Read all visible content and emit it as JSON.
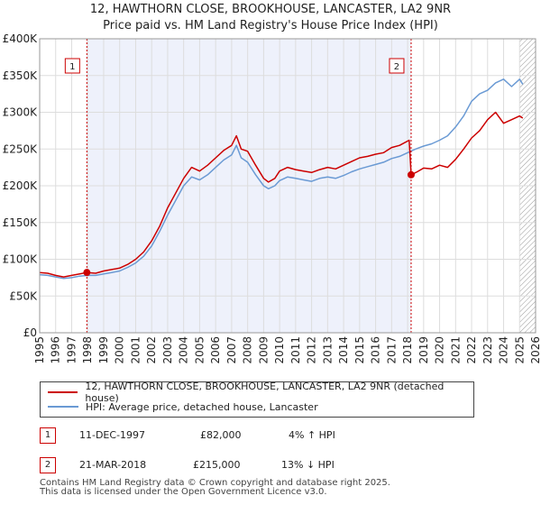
{
  "chart_data": {
    "type": "line",
    "title": "12, HAWTHORN CLOSE, BROOKHOUSE, LANCASTER, LA2 9NR",
    "subtitle": "Price paid vs. HM Land Registry's House Price Index (HPI)",
    "xlabel": "",
    "ylabel": "",
    "xlim": [
      1995,
      2026
    ],
    "ylim": [
      0,
      400000
    ],
    "x_ticks": [
      "1995",
      "1996",
      "1997",
      "1998",
      "1999",
      "2000",
      "2001",
      "2002",
      "2003",
      "2004",
      "2005",
      "2006",
      "2007",
      "2008",
      "2009",
      "2010",
      "2011",
      "2012",
      "2013",
      "2014",
      "2015",
      "2016",
      "2017",
      "2018",
      "2019",
      "2020",
      "2021",
      "2022",
      "2023",
      "2024",
      "2025",
      "2026"
    ],
    "y_ticks": [
      {
        "value": 0,
        "label": "£0"
      },
      {
        "value": 50000,
        "label": "£50K"
      },
      {
        "value": 100000,
        "label": "£100K"
      },
      {
        "value": 150000,
        "label": "£150K"
      },
      {
        "value": 200000,
        "label": "£200K"
      },
      {
        "value": 250000,
        "label": "£250K"
      },
      {
        "value": 300000,
        "label": "£300K"
      },
      {
        "value": 350000,
        "label": "£350K"
      },
      {
        "value": 400000,
        "label": "£400K"
      }
    ],
    "grid": true,
    "shaded_range": [
      1997.95,
      2018.22
    ],
    "hatched_from": 2025.0,
    "series": [
      {
        "name": "12, HAWTHORN CLOSE, BROOKHOUSE, LANCASTER, LA2 9NR (detached house)",
        "color": "#cc0000",
        "x": [
          1995,
          1995.5,
          1996,
          1996.5,
          1997,
          1997.5,
          1997.95,
          1998.5,
          1999,
          1999.5,
          2000,
          2000.5,
          2001,
          2001.5,
          2002,
          2002.5,
          2003,
          2003.5,
          2004,
          2004.5,
          2005,
          2005.5,
          2006,
          2006.5,
          2007,
          2007.3,
          2007.6,
          2008,
          2008.5,
          2009,
          2009.3,
          2009.7,
          2010,
          2010.5,
          2011,
          2011.5,
          2012,
          2012.5,
          2013,
          2013.5,
          2014,
          2014.5,
          2015,
          2015.5,
          2016,
          2016.5,
          2017,
          2017.5,
          2018.1,
          2018.22,
          2018.6,
          2019,
          2019.5,
          2020,
          2020.5,
          2021,
          2021.5,
          2022,
          2022.5,
          2023,
          2023.5,
          2024,
          2024.5,
          2025,
          2025.2
        ],
        "y": [
          82000,
          81000,
          78000,
          76000,
          78000,
          80000,
          82000,
          81000,
          84000,
          86000,
          88000,
          93000,
          100000,
          110000,
          125000,
          145000,
          170000,
          190000,
          210000,
          225000,
          220000,
          228000,
          238000,
          248000,
          255000,
          268000,
          250000,
          247000,
          228000,
          210000,
          205000,
          210000,
          220000,
          225000,
          222000,
          220000,
          218000,
          222000,
          225000,
          223000,
          228000,
          233000,
          238000,
          240000,
          243000,
          245000,
          252000,
          255000,
          262000,
          215000,
          219000,
          224000,
          223000,
          228000,
          225000,
          236000,
          250000,
          265000,
          275000,
          290000,
          300000,
          285000,
          290000,
          295000,
          292000
        ]
      },
      {
        "name": "HPI: Average price, detached house, Lancaster",
        "color": "#6a9ad4",
        "x": [
          1995,
          1995.5,
          1996,
          1996.5,
          1997,
          1997.5,
          1998,
          1998.5,
          1999,
          1999.5,
          2000,
          2000.5,
          2001,
          2001.5,
          2002,
          2002.5,
          2003,
          2003.5,
          2004,
          2004.5,
          2005,
          2005.5,
          2006,
          2006.5,
          2007,
          2007.3,
          2007.6,
          2008,
          2008.5,
          2009,
          2009.3,
          2009.7,
          2010,
          2010.5,
          2011,
          2011.5,
          2012,
          2012.5,
          2013,
          2013.5,
          2014,
          2014.5,
          2015,
          2015.5,
          2016,
          2016.5,
          2017,
          2017.5,
          2018,
          2018.5,
          2019,
          2019.5,
          2020,
          2020.5,
          2021,
          2021.5,
          2022,
          2022.5,
          2023,
          2023.5,
          2024,
          2024.5,
          2025,
          2025.2
        ],
        "y": [
          79000,
          78000,
          76000,
          74000,
          75000,
          77000,
          78000,
          78000,
          80000,
          82000,
          84000,
          89000,
          95000,
          104000,
          118000,
          138000,
          160000,
          180000,
          200000,
          212000,
          208000,
          215000,
          225000,
          235000,
          242000,
          255000,
          238000,
          232000,
          215000,
          200000,
          196000,
          200000,
          207000,
          212000,
          210000,
          208000,
          206000,
          210000,
          212000,
          210000,
          214000,
          219000,
          223000,
          226000,
          229000,
          232000,
          237000,
          240000,
          245000,
          250000,
          254000,
          257000,
          262000,
          268000,
          280000,
          295000,
          315000,
          325000,
          330000,
          340000,
          345000,
          335000,
          345000,
          338000
        ]
      }
    ],
    "markers": [
      {
        "label": "1",
        "x": 1997.95,
        "y": 82000
      },
      {
        "label": "2",
        "x": 2018.22,
        "y": 215000
      }
    ]
  },
  "legend": {
    "items": [
      {
        "label": "12, HAWTHORN CLOSE, BROOKHOUSE, LANCASTER, LA2 9NR (detached house)",
        "color": "#cc0000"
      },
      {
        "label": "HPI: Average price, detached house, Lancaster",
        "color": "#6a9ad4"
      }
    ]
  },
  "transactions": [
    {
      "num": "1",
      "date": "11-DEC-1997",
      "price": "£82,000",
      "hpi": "4% ↑ HPI"
    },
    {
      "num": "2",
      "date": "21-MAR-2018",
      "price": "£215,000",
      "hpi": "13% ↓ HPI"
    }
  ],
  "footer": {
    "line1": "Contains HM Land Registry data © Crown copyright and database right 2025.",
    "line2": "This data is licensed under the Open Government Licence v3.0."
  }
}
